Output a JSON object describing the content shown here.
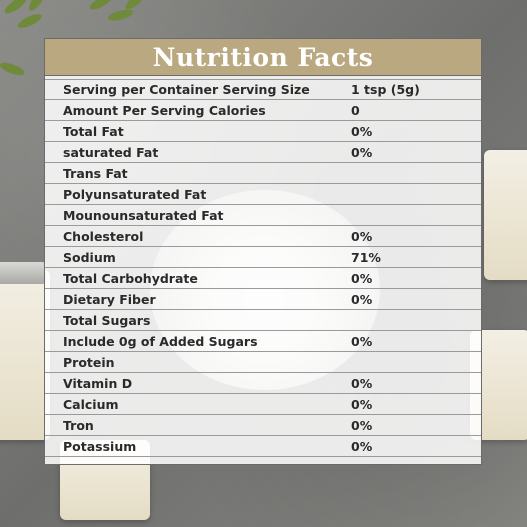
{
  "title": "Nutrition Facts",
  "accent_color": "#b9a880",
  "rows": [
    {
      "label": "Serving per Container Serving Size",
      "value": "1 tsp (5g)"
    },
    {
      "label": "Amount Per Serving Calories",
      "value": "0"
    },
    {
      "label": "Total Fat",
      "value": "0%"
    },
    {
      "label": "saturated Fat",
      "value": "0%"
    },
    {
      "label": "Trans Fat",
      "value": ""
    },
    {
      "label": "Polyunsaturated Fat",
      "value": ""
    },
    {
      "label": "Mounounsaturated Fat",
      "value": ""
    },
    {
      "label": "Cholesterol",
      "value": "0%"
    },
    {
      "label": "Sodium",
      "value": "71%"
    },
    {
      "label": "Total Carbohydrate",
      "value": "0%"
    },
    {
      "label": "Dietary Fiber",
      "value": "0%"
    },
    {
      "label": "Total Sugars",
      "value": ""
    },
    {
      "label": "Include 0g of Added Sugars",
      "value": "0%"
    },
    {
      "label": "Protein",
      "value": ""
    },
    {
      "label": "Vitamin D",
      "value": "0%"
    },
    {
      "label": "Calcium",
      "value": "0%"
    },
    {
      "label": "Tron",
      "value": "0%"
    },
    {
      "label": "Potassium",
      "value": "0%"
    }
  ]
}
